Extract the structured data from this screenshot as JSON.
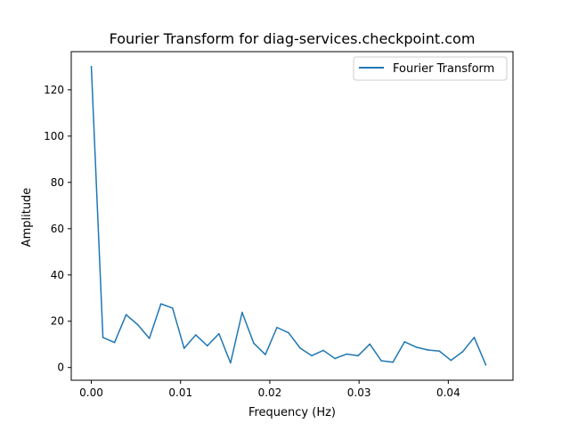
{
  "chart_data": {
    "type": "line",
    "title": "Fourier Transform for diag-services.checkpoint.com",
    "xlabel": "Frequency (Hz)",
    "ylabel": "Amplitude",
    "xlim": [
      -0.00225,
      0.04725
    ],
    "ylim": [
      -5.5,
      136.5
    ],
    "xticks": [
      0.0,
      0.01,
      0.02,
      0.03,
      0.04
    ],
    "xtick_labels": [
      "0.00",
      "0.01",
      "0.02",
      "0.03",
      "0.04"
    ],
    "yticks": [
      0,
      20,
      40,
      60,
      80,
      100,
      120
    ],
    "ytick_labels": [
      "0",
      "20",
      "40",
      "60",
      "80",
      "100",
      "120"
    ],
    "grid": false,
    "legend": {
      "position": "top-right",
      "entries": [
        "Fourier Transform"
      ]
    },
    "series": [
      {
        "name": "Fourier Transform",
        "color": "#1f77b4",
        "x": [
          0.0,
          0.0013,
          0.0026,
          0.0039,
          0.0052,
          0.0065,
          0.0078,
          0.0091,
          0.0104,
          0.0117,
          0.013,
          0.0143,
          0.0156,
          0.0169,
          0.0182,
          0.0195,
          0.0208,
          0.0221,
          0.0234,
          0.0247,
          0.026,
          0.0273,
          0.0286,
          0.0299,
          0.0312,
          0.0325,
          0.0338,
          0.0351,
          0.0364,
          0.0377,
          0.039,
          0.0403,
          0.0416,
          0.0429,
          0.0442
        ],
        "values": [
          130.0,
          13.0,
          10.8,
          22.8,
          18.5,
          12.6,
          27.5,
          25.7,
          8.3,
          14.1,
          9.4,
          14.6,
          2.0,
          23.8,
          10.5,
          5.6,
          17.3,
          15.0,
          8.4,
          5.1,
          7.4,
          3.9,
          5.8,
          5.1,
          10.1,
          2.9,
          2.3,
          11.1,
          8.8,
          7.6,
          7.1,
          3.1,
          6.8,
          13.0,
          1.2
        ]
      }
    ]
  }
}
